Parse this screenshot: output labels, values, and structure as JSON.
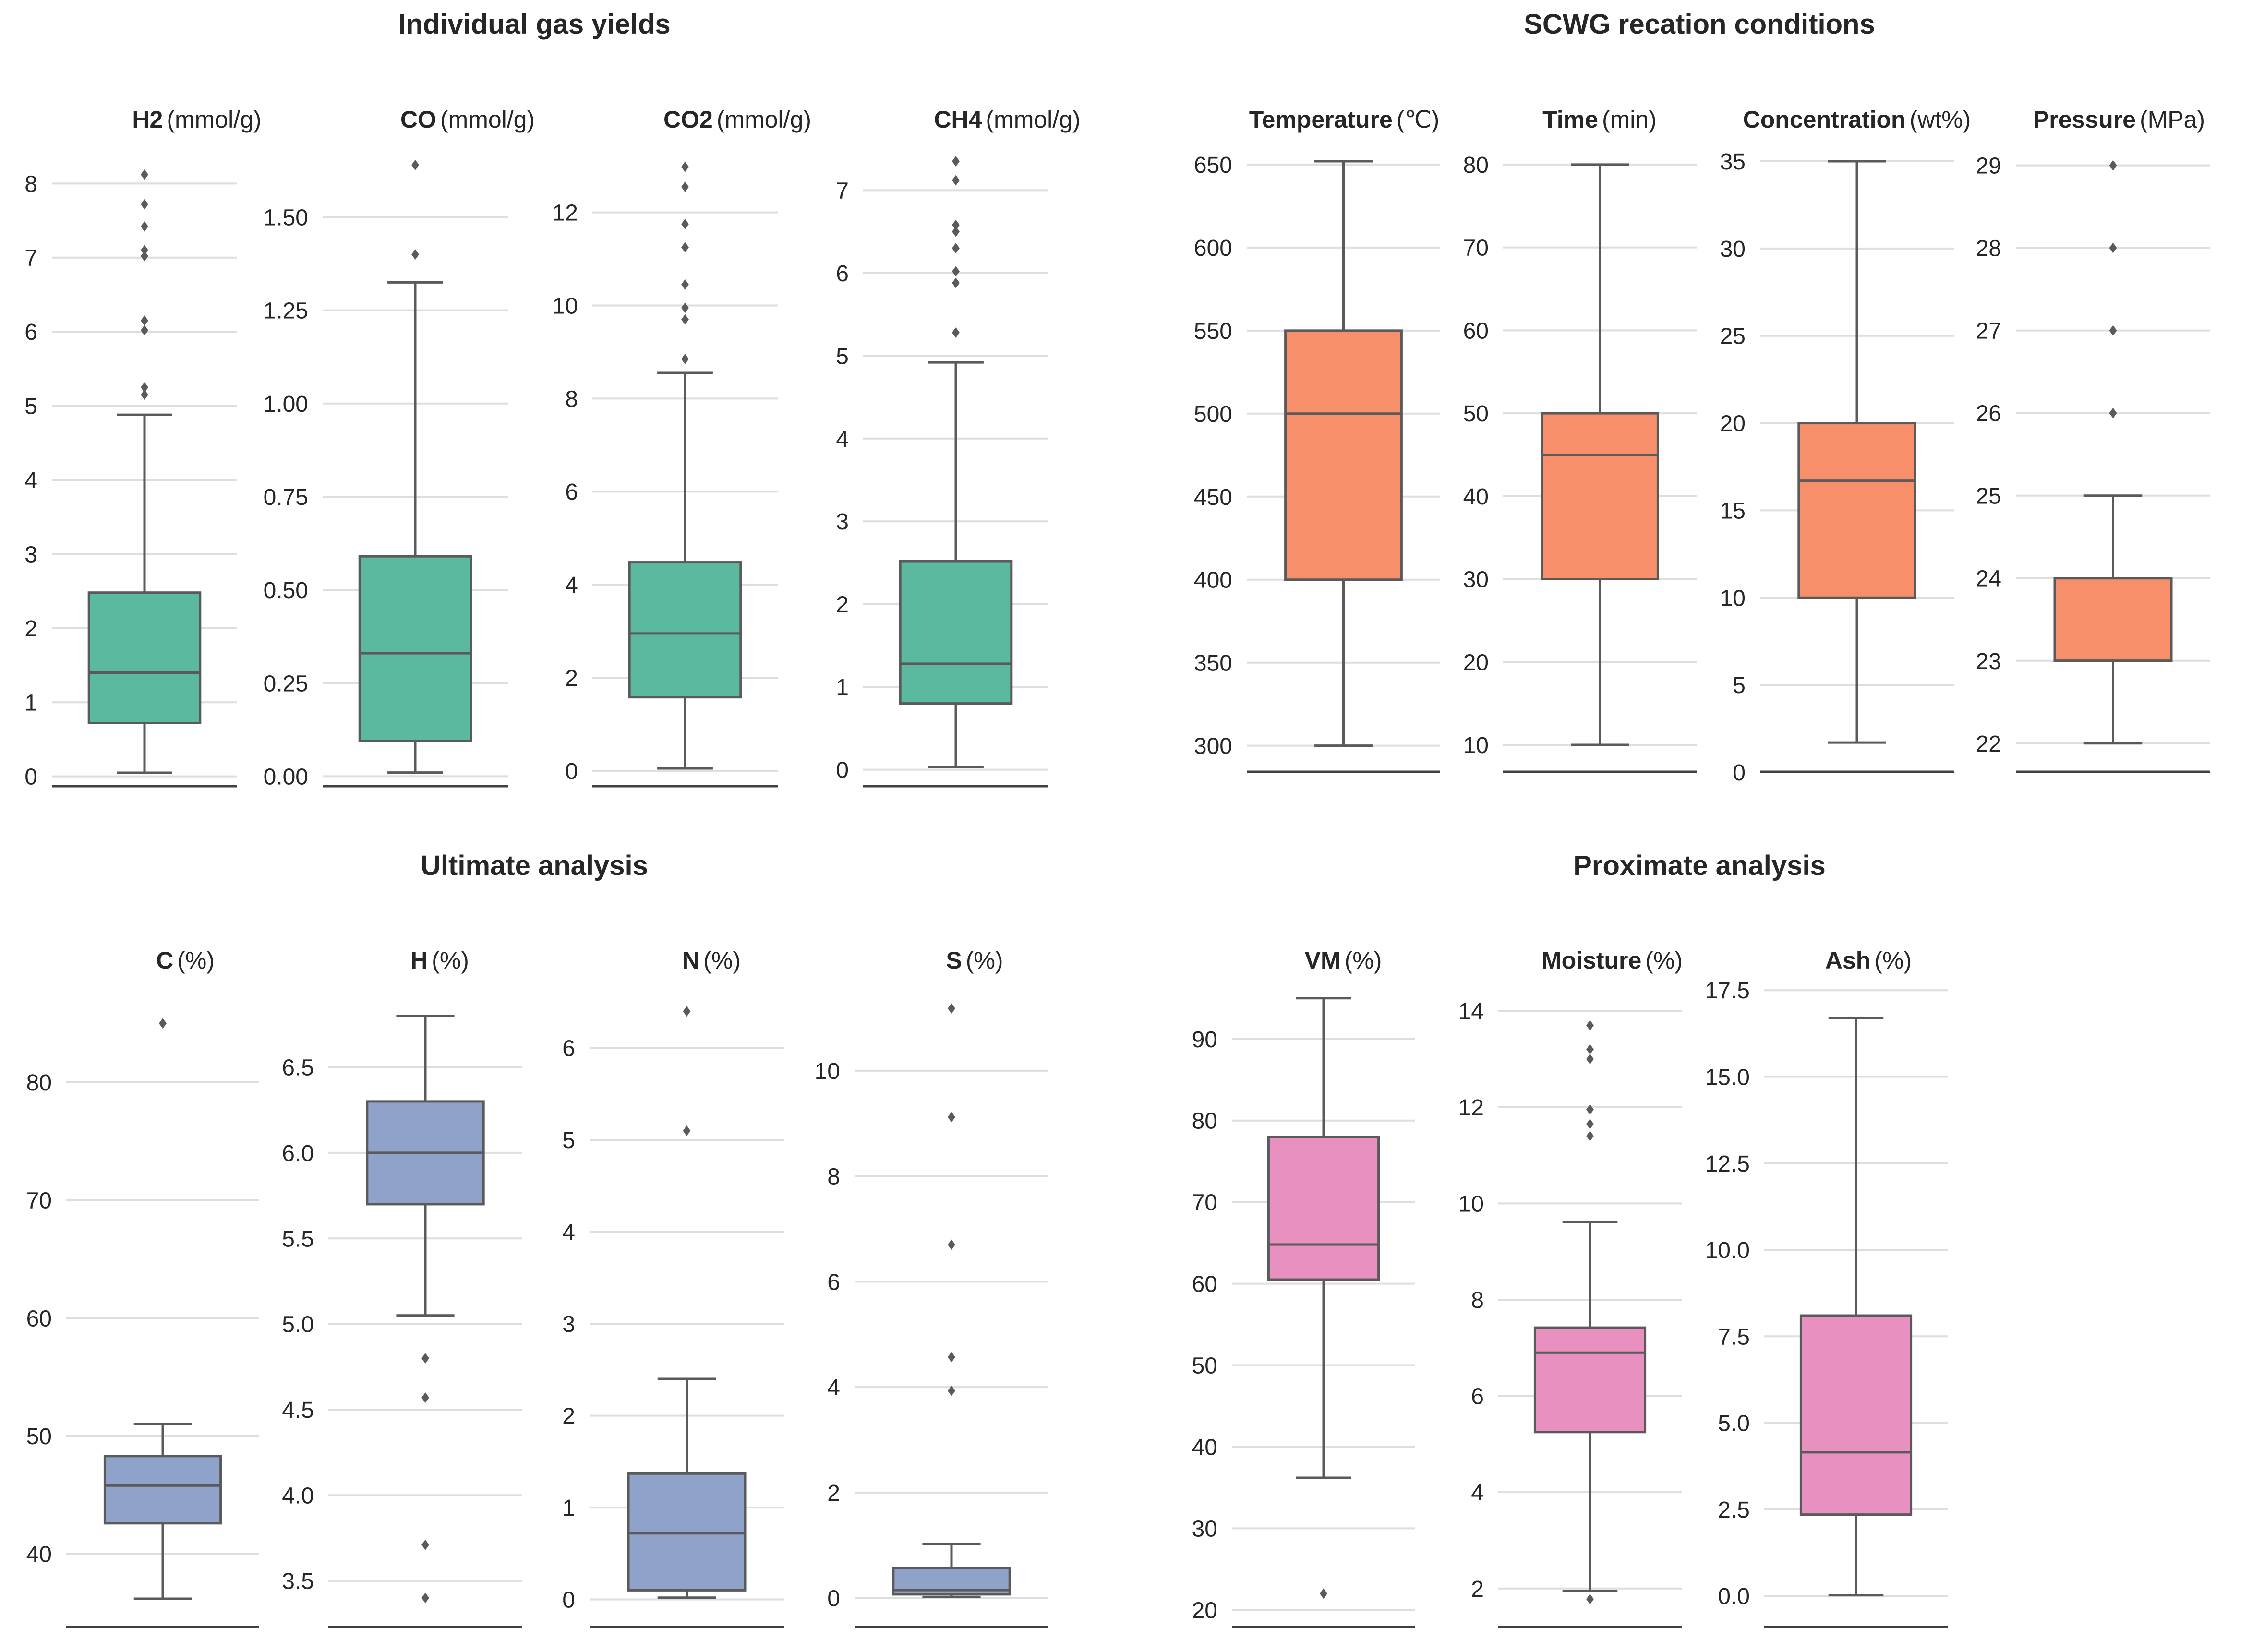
{
  "chart_data": [
    {
      "group": "Individual gas yields",
      "color": "#5ab99f",
      "panels": [
        {
          "type": "box",
          "name": "H2",
          "unit": "(mmol/g)",
          "ylim": [
            -0.3,
            8.3
          ],
          "ticks": [
            0,
            1,
            2,
            3,
            4,
            5,
            6,
            7,
            8
          ],
          "tick_labels": [
            "0",
            "1",
            "2",
            "3",
            "4",
            "5",
            "6",
            "7",
            "8"
          ],
          "whisker_low": 0.05,
          "q1": 0.72,
          "median": 1.4,
          "q3": 2.48,
          "whisker_high": 4.88,
          "outliers": [
            5.15,
            5.25,
            6.02,
            6.15,
            7.02,
            7.1,
            7.42,
            7.72,
            8.12
          ]
        },
        {
          "type": "box",
          "name": "CO",
          "unit": "(mmol/g)",
          "ylim": [
            -0.06,
            1.65
          ],
          "ticks": [
            0,
            0.25,
            0.5,
            0.75,
            1.0,
            1.25,
            1.5
          ],
          "tick_labels": [
            "0.00",
            "0.25",
            "0.50",
            "0.75",
            "1.00",
            "1.25",
            "1.50"
          ],
          "whisker_low": 0.01,
          "q1": 0.095,
          "median": 0.33,
          "q3": 0.59,
          "whisker_high": 1.325,
          "outliers": [
            1.4,
            1.64
          ]
        },
        {
          "type": "box",
          "name": "CO2",
          "unit": "(mmol/g)",
          "ylim": [
            -0.6,
            13.1
          ],
          "ticks": [
            0,
            2,
            4,
            6,
            8,
            10,
            12
          ],
          "tick_labels": [
            "0",
            "2",
            "4",
            "6",
            "8",
            "10",
            "12"
          ],
          "whisker_low": 0.05,
          "q1": 1.58,
          "median": 2.95,
          "q3": 4.48,
          "whisker_high": 8.55,
          "outliers": [
            8.85,
            9.7,
            9.95,
            10.45,
            11.25,
            11.75,
            12.55,
            12.98
          ]
        },
        {
          "type": "box",
          "name": "CH4",
          "unit": "(mmol/g)",
          "ylim": [
            -0.35,
            7.35
          ],
          "ticks": [
            0,
            1,
            2,
            3,
            4,
            5,
            6,
            7
          ],
          "tick_labels": [
            "0",
            "1",
            "2",
            "3",
            "4",
            "5",
            "6",
            "7"
          ],
          "whisker_low": 0.03,
          "q1": 0.8,
          "median": 1.28,
          "q3": 2.52,
          "whisker_high": 4.92,
          "outliers": [
            5.28,
            5.88,
            6.02,
            6.3,
            6.5,
            6.58,
            7.12,
            7.35
          ]
        }
      ]
    },
    {
      "group": "SCWG recation conditions",
      "color": "#f78f6a",
      "panels": [
        {
          "type": "box",
          "name": "Temperature",
          "unit": "(℃)",
          "ylim": [
            284,
            652
          ],
          "ticks": [
            300,
            350,
            400,
            450,
            500,
            550,
            600,
            650
          ],
          "tick_labels": [
            "300",
            "350",
            "400",
            "450",
            "500",
            "550",
            "600",
            "650"
          ],
          "whisker_low": 300,
          "q1": 400,
          "median": 500,
          "q3": 550,
          "whisker_high": 652,
          "outliers": []
        },
        {
          "type": "box",
          "name": "Time",
          "unit": "(min)",
          "ylim": [
            6.7,
            80.4
          ],
          "ticks": [
            10,
            20,
            30,
            40,
            50,
            60,
            70,
            80
          ],
          "tick_labels": [
            "10",
            "20",
            "30",
            "40",
            "50",
            "60",
            "70",
            "80"
          ],
          "whisker_low": 10,
          "q1": 30,
          "median": 45,
          "q3": 50,
          "whisker_high": 80,
          "outliers": []
        },
        {
          "type": "box",
          "name": "Concentration",
          "unit": "(wt%)",
          "ylim": [
            0,
            35
          ],
          "ticks": [
            0,
            5,
            10,
            15,
            20,
            25,
            30,
            35
          ],
          "tick_labels": [
            "0",
            "5",
            "10",
            "15",
            "20",
            "25",
            "30",
            "35"
          ],
          "whisker_low": 1.7,
          "q1": 10,
          "median": 16.7,
          "q3": 20,
          "whisker_high": 35,
          "outliers": []
        },
        {
          "type": "box",
          "name": "Pressure",
          "unit": "(MPa)",
          "ylim": [
            21.65,
            29.05
          ],
          "ticks": [
            22,
            23,
            24,
            25,
            26,
            27,
            28,
            29
          ],
          "tick_labels": [
            "22",
            "23",
            "24",
            "25",
            "26",
            "27",
            "28",
            "29"
          ],
          "whisker_low": 22,
          "q1": 23,
          "median": 23,
          "q3": 24,
          "whisker_high": 25,
          "outliers": [
            26,
            27,
            28,
            29
          ]
        }
      ]
    },
    {
      "group": "Ultimate analysis",
      "color": "#8fa2ca",
      "panels": [
        {
          "type": "box",
          "name": "C",
          "unit": "(%)",
          "ylim": [
            33.8,
            86.8
          ],
          "ticks": [
            40,
            50,
            60,
            70,
            80
          ],
          "tick_labels": [
            "40",
            "50",
            "60",
            "70",
            "80"
          ],
          "whisker_low": 36.2,
          "q1": 42.6,
          "median": 45.8,
          "q3": 48.3,
          "whisker_high": 51,
          "outliers": [
            85
          ]
        },
        {
          "type": "box",
          "name": "H",
          "unit": "(%)",
          "ylim": [
            3.23,
            6.88
          ],
          "ticks": [
            3.5,
            4.0,
            4.5,
            5.0,
            5.5,
            6.0,
            6.5
          ],
          "tick_labels": [
            "3.5",
            "4.0",
            "4.5",
            "5.0",
            "5.5",
            "6.0",
            "6.5"
          ],
          "whisker_low": 5.05,
          "q1": 5.7,
          "median": 6.0,
          "q3": 6.3,
          "whisker_high": 6.8,
          "outliers": [
            4.8,
            4.57,
            3.71,
            3.4
          ]
        },
        {
          "type": "box",
          "name": "N",
          "unit": "(%)",
          "ylim": [
            -0.3,
            6.5
          ],
          "ticks": [
            0,
            1,
            2,
            3,
            4,
            5,
            6
          ],
          "tick_labels": [
            "0",
            "1",
            "2",
            "3",
            "4",
            "5",
            "6"
          ],
          "whisker_low": 0.02,
          "q1": 0.1,
          "median": 0.72,
          "q3": 1.37,
          "whisker_high": 2.4,
          "outliers": [
            5.1,
            6.4
          ]
        },
        {
          "type": "box",
          "name": "S",
          "unit": "(%)",
          "ylim": [
            -0.55,
            11.3
          ],
          "ticks": [
            0,
            2,
            4,
            6,
            8,
            10
          ],
          "tick_labels": [
            "0",
            "2",
            "4",
            "6",
            "8",
            "10"
          ],
          "whisker_low": 0.02,
          "q1": 0.07,
          "median": 0.15,
          "q3": 0.57,
          "whisker_high": 1.02,
          "outliers": [
            3.93,
            4.57,
            6.7,
            9.12,
            11.18
          ]
        }
      ]
    },
    {
      "group": "Proximate analysis",
      "color": "#e891c0",
      "panels": [
        {
          "type": "box",
          "name": "VM",
          "unit": "(%)",
          "ylim": [
            17.9,
            96.4
          ],
          "ticks": [
            20,
            30,
            40,
            50,
            60,
            70,
            80,
            90
          ],
          "tick_labels": [
            "20",
            "30",
            "40",
            "50",
            "60",
            "70",
            "80",
            "90"
          ],
          "whisker_low": 36.2,
          "q1": 60.5,
          "median": 64.8,
          "q3": 78,
          "whisker_high": 95,
          "outliers": [
            22
          ]
        },
        {
          "type": "box",
          "name": "Moisture",
          "unit": "(%)",
          "ylim": [
            1.2,
            14.5
          ],
          "ticks": [
            2,
            4,
            6,
            8,
            10,
            12,
            14
          ],
          "tick_labels": [
            "2",
            "4",
            "6",
            "8",
            "10",
            "12",
            "14"
          ],
          "whisker_low": 1.95,
          "q1": 5.25,
          "median": 6.9,
          "q3": 7.42,
          "whisker_high": 9.62,
          "outliers": [
            1.78,
            11.4,
            11.65,
            11.95,
            13.0,
            13.2,
            13.7
          ]
        },
        {
          "type": "box",
          "name": "Ash",
          "unit": "(%)",
          "ylim": [
            -0.9,
            17.6
          ],
          "ticks": [
            0,
            2.5,
            5,
            7.5,
            10,
            12.5,
            15,
            17.5
          ],
          "tick_labels": [
            "0.0",
            "2.5",
            "5.0",
            "7.5",
            "10.0",
            "12.5",
            "15.0",
            "17.5"
          ],
          "whisker_low": 0.02,
          "q1": 2.35,
          "median": 4.15,
          "q3": 8.1,
          "whisker_high": 16.7,
          "outliers": []
        }
      ]
    }
  ]
}
